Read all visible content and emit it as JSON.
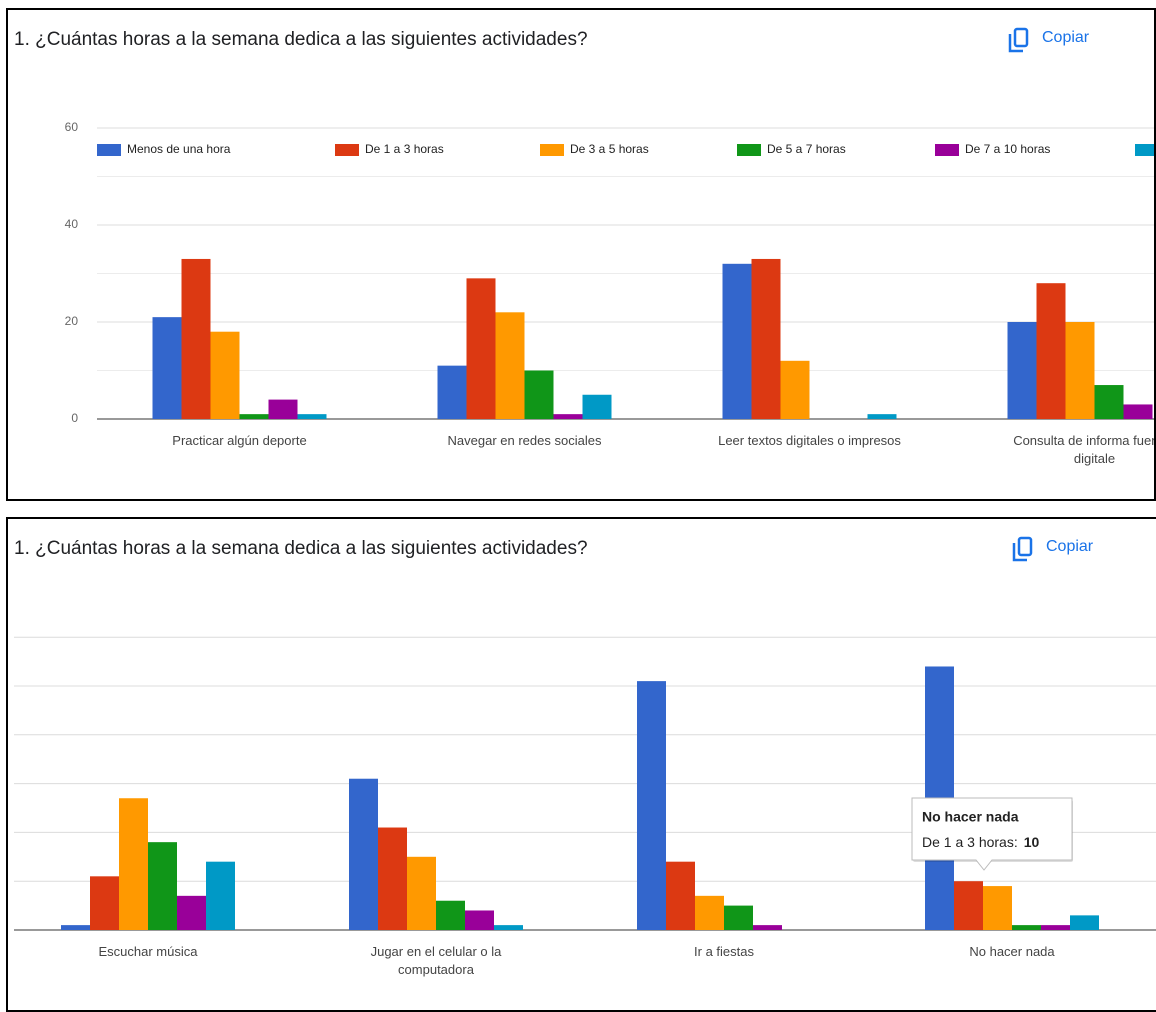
{
  "chart_data": [
    {
      "type": "bar",
      "title": "1. ¿Cuántas horas a la semana dedica a las siguientes actividades?",
      "copy_button": "Copiar",
      "categories": [
        "Practicar algún deporte",
        "Navegar en redes sociales",
        "Leer textos digitales o impresos",
        "Consulta de informa fuentes digitale"
      ],
      "series": [
        {
          "name": "Menos de una hora",
          "color": "#3366cc",
          "values": [
            21,
            11,
            32,
            20
          ]
        },
        {
          "name": "De 1 a 3 horas",
          "color": "#dc3912",
          "values": [
            33,
            29,
            33,
            28
          ]
        },
        {
          "name": "De 3 a 5 horas",
          "color": "#ff9900",
          "values": [
            18,
            22,
            12,
            20
          ]
        },
        {
          "name": "De 5 a 7 horas",
          "color": "#109618",
          "values": [
            1,
            10,
            0,
            7
          ]
        },
        {
          "name": "De 7 a 10 horas",
          "color": "#990099",
          "values": [
            4,
            1,
            0,
            3
          ]
        },
        {
          "name": null,
          "color": "#0099c6",
          "values": [
            1,
            5,
            1,
            null
          ]
        }
      ],
      "ylim": [
        0,
        60
      ],
      "yticks": [
        0,
        20,
        40,
        60
      ],
      "minor_yticks": [
        10,
        30,
        50
      ],
      "grid": true,
      "legend": "top",
      "show_tick_labels": true
    },
    {
      "type": "bar",
      "title": "1. ¿Cuántas horas a la semana dedica a las siguientes actividades?",
      "copy_button": "Copiar",
      "categories": [
        "Escuchar música",
        "Jugar en el celular o la computadora",
        "Ir a fiestas",
        "No hacer nada"
      ],
      "series": [
        {
          "name": "Menos de una hora",
          "color": "#3366cc",
          "values": [
            1,
            31,
            51,
            54
          ]
        },
        {
          "name": "De 1 a 3 horas",
          "color": "#dc3912",
          "values": [
            11,
            21,
            14,
            10
          ]
        },
        {
          "name": "De 3 a 5 horas",
          "color": "#ff9900",
          "values": [
            27,
            15,
            7,
            9
          ]
        },
        {
          "name": "De 5 a 7 horas",
          "color": "#109618",
          "values": [
            18,
            6,
            5,
            1
          ]
        },
        {
          "name": "De 7 a 10 horas",
          "color": "#990099",
          "values": [
            7,
            4,
            1,
            1
          ]
        },
        {
          "name": null,
          "color": "#0099c6",
          "values": [
            14,
            1,
            0,
            3
          ]
        }
      ],
      "ylim": [
        0,
        60
      ],
      "yticks": [
        0,
        10,
        20,
        30,
        40,
        50,
        60
      ],
      "grid": true,
      "legend": "none",
      "show_tick_labels": false,
      "tooltip": {
        "label": "De 1 a 3 horas:"
      }
    }
  ]
}
